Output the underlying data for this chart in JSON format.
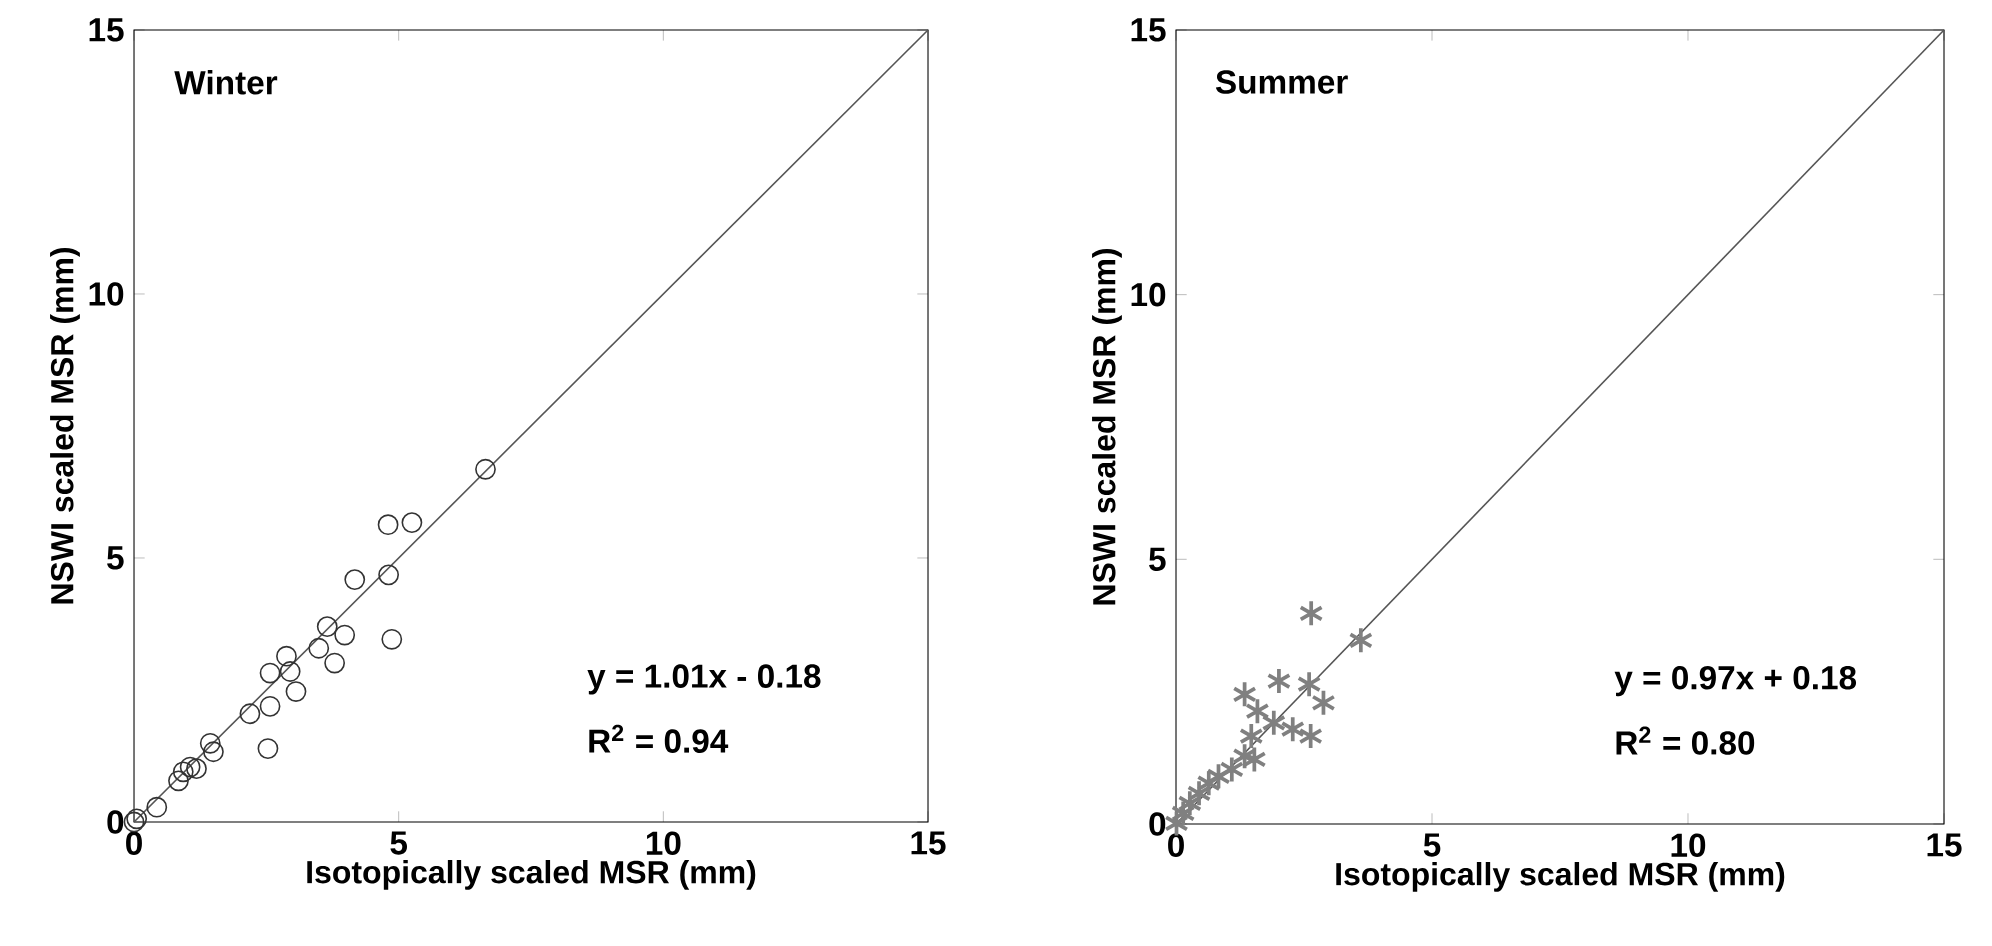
{
  "chart_data": [
    {
      "type": "scatter",
      "xlabel": "Isotopically scaled MSR (mm)",
      "ylabel": "NSWI scaled MSR (mm)",
      "xlim": [
        0,
        15
      ],
      "ylim": [
        0,
        15
      ],
      "xticks": [
        0,
        5,
        10,
        15
      ],
      "yticks": [
        0,
        5,
        10,
        15
      ],
      "annotations": [
        "Winter",
        "y = 1.01x - 0.18",
        "R$^{2}$ = 0.94"
      ],
      "series": [
        {
          "type": "scatter",
          "marker": "circle",
          "color": "#333333",
          "x": [
            6.64,
            4.8,
            5.25,
            4.81,
            4.17,
            3.65,
            3.98,
            3.49,
            3.79,
            4.87,
            2.88,
            2.57,
            2.95,
            3.06,
            2.57,
            2.19,
            2.53,
            1.44,
            1.5,
            1.06,
            0.93,
            0.84,
            1.18,
            0.43,
            0.05,
            0.0
          ],
          "values": [
            6.68,
            5.63,
            5.67,
            4.68,
            4.59,
            3.7,
            3.54,
            3.29,
            3.01,
            3.46,
            3.14,
            2.82,
            2.85,
            2.47,
            2.19,
            2.05,
            1.39,
            1.49,
            1.33,
            1.04,
            0.95,
            0.78,
            1.01,
            0.28,
            0.06,
            0.0
          ]
        },
        {
          "type": "line",
          "marker": "none",
          "color": "#555555",
          "x": [
            0,
            15
          ],
          "values": [
            0,
            15
          ]
        }
      ]
    },
    {
      "type": "scatter",
      "xlabel": "Isotopically scaled MSR (mm)",
      "ylabel": "NSWI scaled MSR (mm)",
      "xlim": [
        0,
        15
      ],
      "ylim": [
        0,
        15
      ],
      "xticks": [
        0,
        5,
        10,
        15
      ],
      "yticks": [
        0,
        5,
        10,
        15
      ],
      "annotations": [
        "Summer",
        "y = 0.97x + 0.18",
        "R$^{2}$ = 0.80"
      ],
      "series": [
        {
          "type": "scatter",
          "marker": "cross",
          "color": "#808080",
          "x": [
            2.64,
            3.61,
            1.34,
            2.01,
            2.6,
            2.88,
            1.59,
            1.91,
            2.28,
            2.63,
            1.47,
            1.34,
            1.53,
            1.09,
            0.83,
            0.64,
            0.45,
            0.27,
            0.14,
            0.01
          ],
          "values": [
            3.98,
            3.47,
            2.45,
            2.7,
            2.64,
            2.29,
            2.13,
            1.91,
            1.79,
            1.66,
            1.66,
            1.28,
            1.22,
            1.03,
            0.9,
            0.77,
            0.58,
            0.39,
            0.2,
            0.01
          ]
        },
        {
          "type": "line",
          "marker": "none",
          "color": "#555555",
          "x": [
            0,
            15
          ],
          "values": [
            0,
            15
          ]
        }
      ]
    }
  ]
}
